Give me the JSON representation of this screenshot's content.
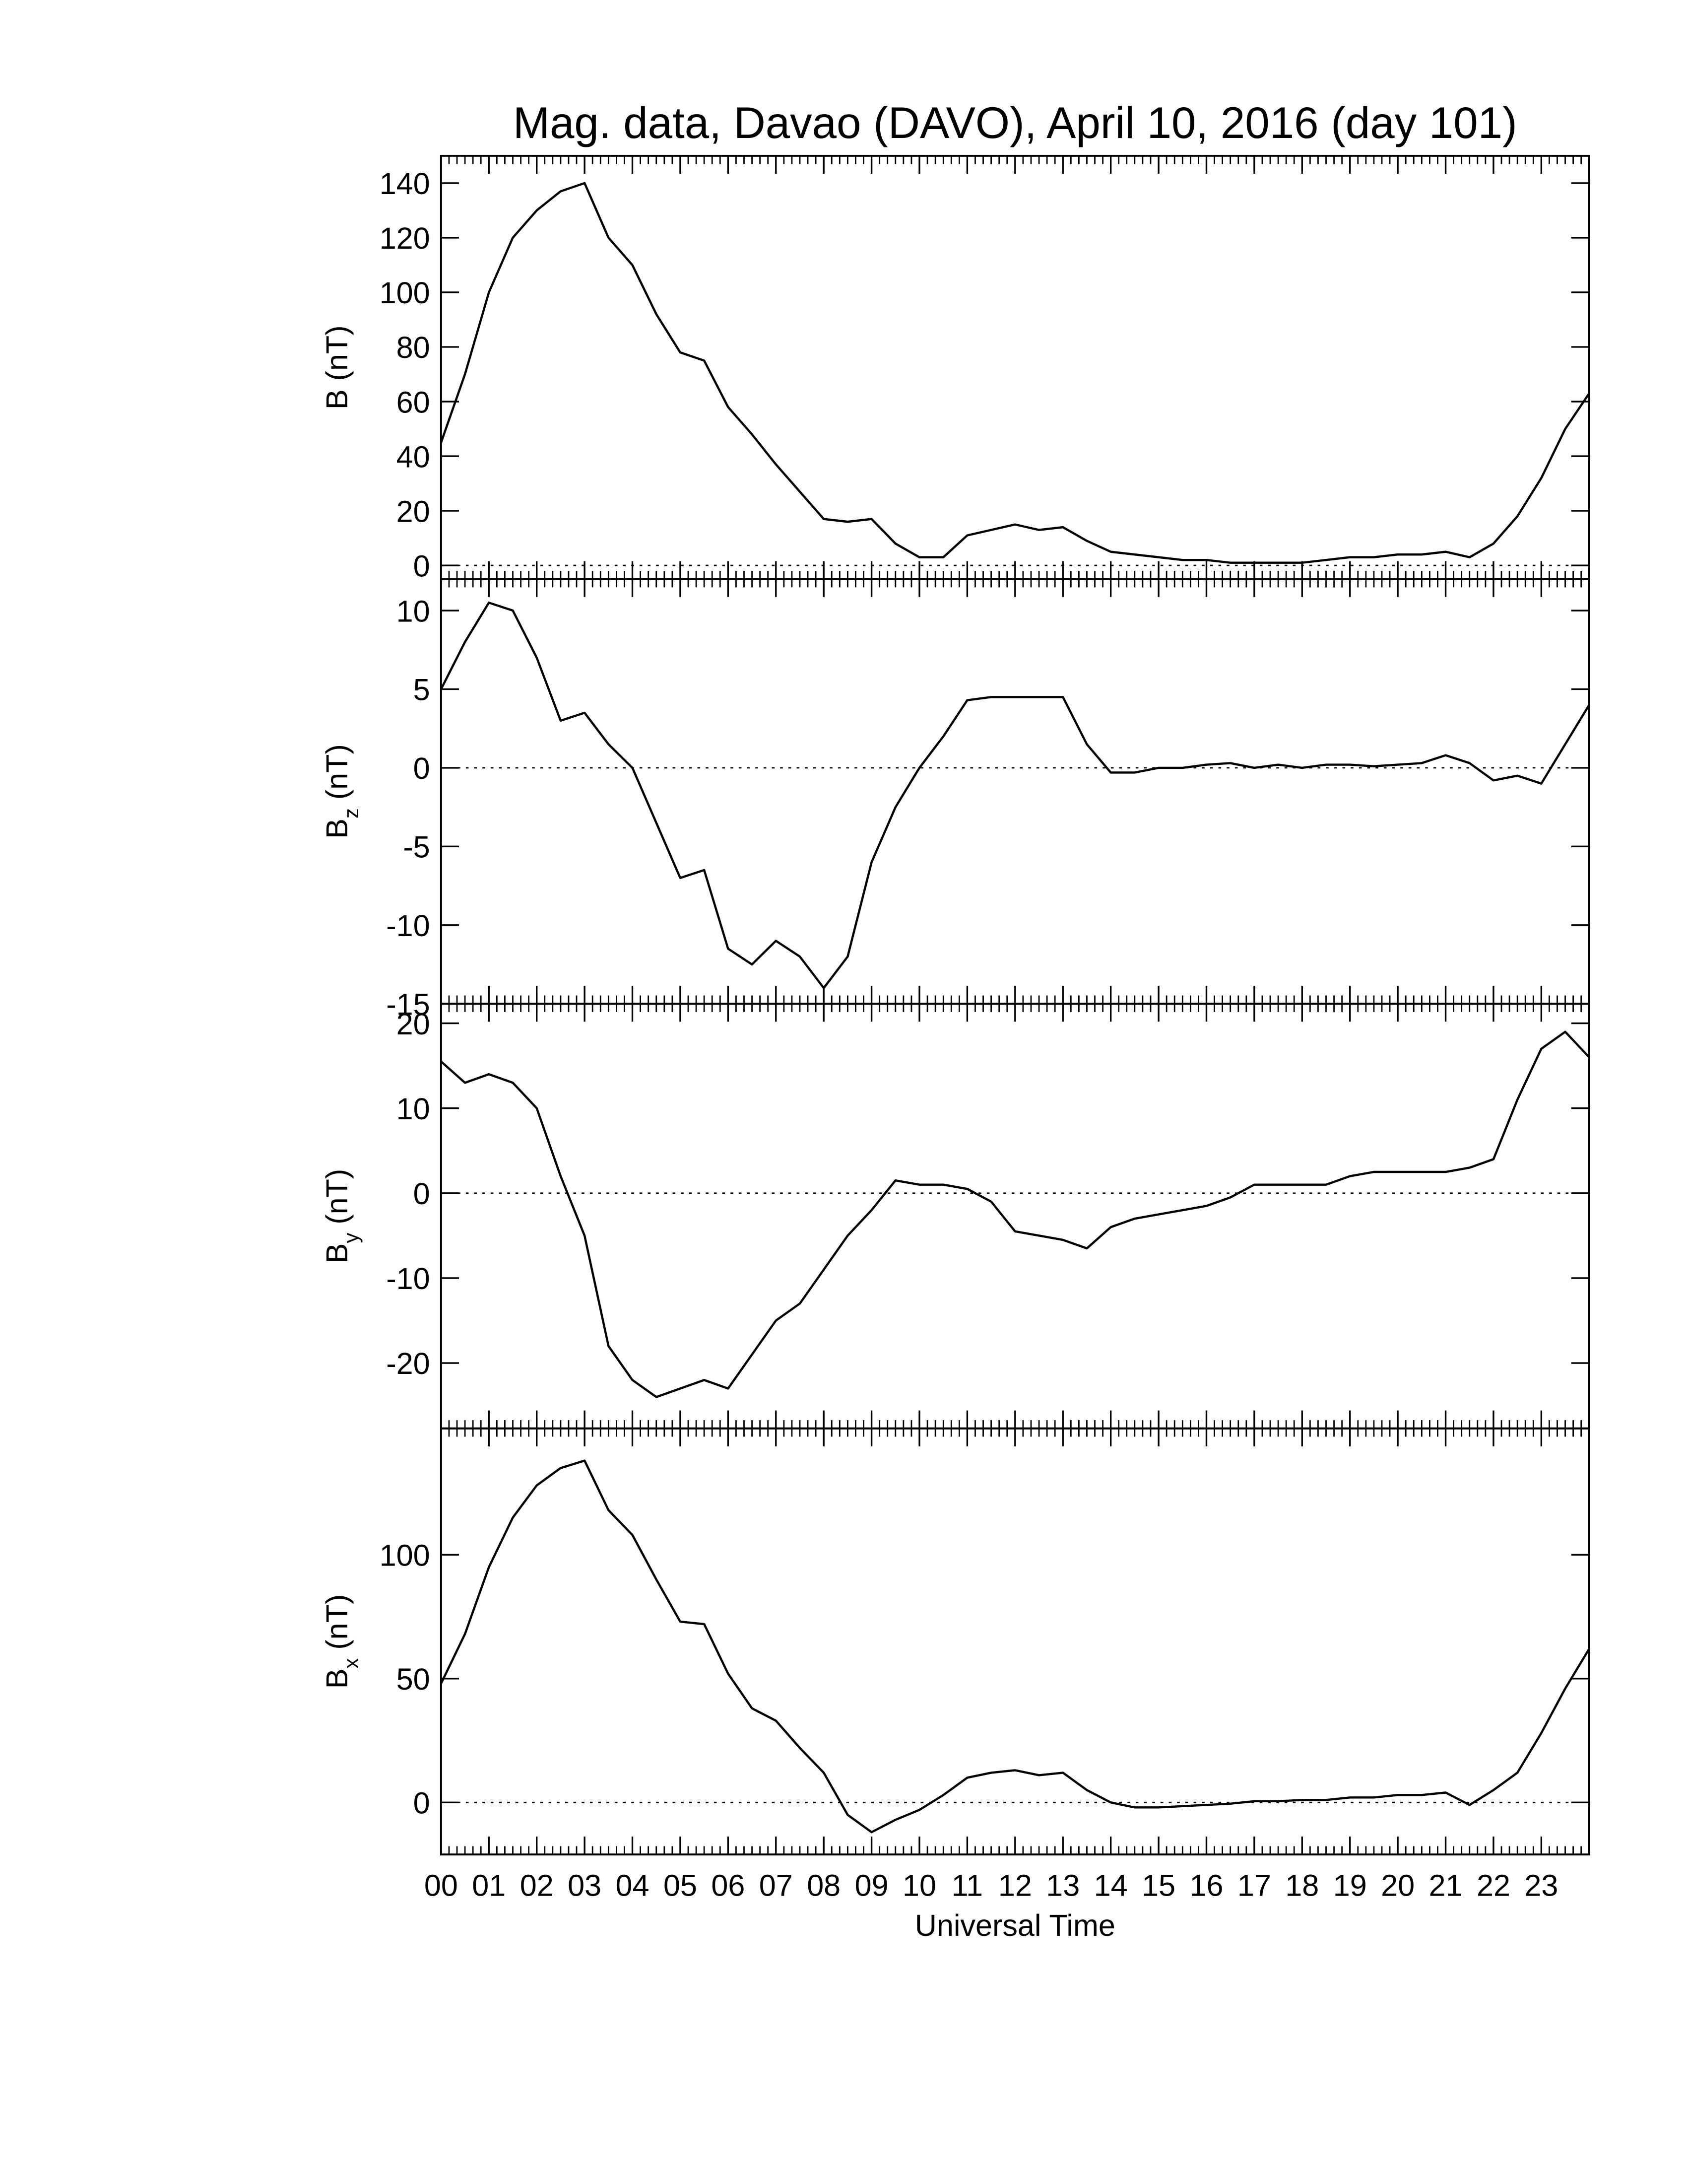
{
  "chart_data": [
    {
      "type": "line",
      "title": "Mag. data, Davao (DAVO), April 10, 2016 (day 101)",
      "ylabel": {
        "main": "B",
        "unit": " (nT)"
      },
      "color": "#000000",
      "hline": 0,
      "xlim": [
        0,
        24
      ],
      "xticks": [
        0,
        1,
        2,
        3,
        4,
        5,
        6,
        7,
        8,
        9,
        10,
        11,
        12,
        13,
        14,
        15,
        16,
        17,
        18,
        19,
        20,
        21,
        22,
        23
      ],
      "ylim": [
        -5,
        150
      ],
      "yticks": [
        0,
        20,
        40,
        60,
        80,
        100,
        120,
        140
      ],
      "x": [
        0,
        0.5,
        1,
        1.5,
        2,
        2.5,
        3,
        3.5,
        4,
        4.5,
        5,
        5.5,
        6,
        6.5,
        7,
        7.5,
        8,
        8.5,
        9,
        9.5,
        10,
        10.5,
        11,
        11.5,
        12,
        12.5,
        13,
        13.5,
        14,
        14.5,
        15,
        15.5,
        16,
        16.5,
        17,
        17.5,
        18,
        18.5,
        19,
        19.5,
        20,
        20.5,
        21,
        21.5,
        22,
        22.5,
        23,
        23.5,
        24
      ],
      "values": [
        45,
        70,
        100,
        120,
        130,
        137,
        140,
        120,
        110,
        92,
        78,
        75,
        58,
        48,
        37,
        27,
        17,
        16,
        17,
        8,
        3,
        3,
        11,
        13,
        15,
        13,
        14,
        9,
        5,
        4,
        3,
        2,
        2,
        1,
        1,
        1,
        1,
        2,
        3,
        3,
        4,
        4,
        5,
        3,
        8,
        18,
        32,
        50,
        63
      ]
    },
    {
      "type": "line",
      "ylabel": {
        "main": "B",
        "sub": "z",
        "unit": " (nT)"
      },
      "color": "#000000",
      "hline": 0,
      "xlim": [
        0,
        24
      ],
      "xticks": [
        0,
        1,
        2,
        3,
        4,
        5,
        6,
        7,
        8,
        9,
        10,
        11,
        12,
        13,
        14,
        15,
        16,
        17,
        18,
        19,
        20,
        21,
        22,
        23
      ],
      "ylim": [
        -15,
        12
      ],
      "yticks": [
        -15,
        -10,
        -5,
        0,
        5,
        10
      ],
      "x": [
        0,
        0.5,
        1,
        1.5,
        2,
        2.5,
        3,
        3.5,
        4,
        4.5,
        5,
        5.5,
        6,
        6.5,
        7,
        7.5,
        8,
        8.5,
        9,
        9.5,
        10,
        10.5,
        11,
        11.5,
        12,
        12.5,
        13,
        13.5,
        14,
        14.5,
        15,
        15.5,
        16,
        16.5,
        17,
        17.5,
        18,
        18.5,
        19,
        19.5,
        20,
        20.5,
        21,
        21.5,
        22,
        22.5,
        23,
        23.5,
        24
      ],
      "values": [
        5,
        8,
        10.5,
        10,
        7,
        3,
        3.5,
        1.5,
        0,
        -3.5,
        -7,
        -6.5,
        -11.5,
        -12.5,
        -11,
        -12,
        -14,
        -12,
        -6,
        -2.5,
        0,
        2,
        4.3,
        4.5,
        4.5,
        4.5,
        4.5,
        1.5,
        -0.3,
        -0.3,
        0,
        0,
        0.2,
        0.3,
        0,
        0.2,
        0,
        0.2,
        0.2,
        0.1,
        0.2,
        0.3,
        0.8,
        0.3,
        -0.8,
        -0.5,
        -1,
        1.5,
        4
      ]
    },
    {
      "type": "line",
      "ylabel": {
        "main": "B",
        "sub": "y",
        "unit": " (nT)"
      },
      "color": "#000000",
      "hline": 0,
      "xlim": [
        0,
        24
      ],
      "xticks": [
        0,
        1,
        2,
        3,
        4,
        5,
        6,
        7,
        8,
        9,
        10,
        11,
        12,
        13,
        14,
        15,
        16,
        17,
        18,
        19,
        20,
        21,
        22,
        23
      ],
      "ylim": [
        -27.7,
        22.3
      ],
      "yticks": [
        -20,
        -10,
        0,
        10,
        20
      ],
      "x": [
        0,
        0.5,
        1,
        1.5,
        2,
        2.5,
        3,
        3.5,
        4,
        4.5,
        5,
        5.5,
        6,
        6.5,
        7,
        7.5,
        8,
        8.5,
        9,
        9.5,
        10,
        10.5,
        11,
        11.5,
        12,
        12.5,
        13,
        13.5,
        14,
        14.5,
        15,
        15.5,
        16,
        16.5,
        17,
        17.5,
        18,
        18.5,
        19,
        19.5,
        20,
        20.5,
        21,
        21.5,
        22,
        22.5,
        23,
        23.5,
        24
      ],
      "values": [
        15.5,
        13,
        14,
        13,
        10,
        2,
        -5,
        -18,
        -22,
        -24,
        -23,
        -22,
        -23,
        -19,
        -15,
        -13,
        -9,
        -5,
        -2,
        1.5,
        1,
        1,
        0.5,
        -1,
        -4.5,
        -5,
        -5.5,
        -6.5,
        -4,
        -3,
        -2.5,
        -2,
        -1.5,
        -0.5,
        1,
        1,
        1,
        1,
        2,
        2.5,
        2.5,
        2.5,
        2.5,
        3,
        4,
        11,
        17,
        19,
        16
      ]
    },
    {
      "type": "line",
      "ylabel": {
        "main": "B",
        "sub": "x",
        "unit": " (nT)"
      },
      "xlabel": "Universal Time",
      "color": "#000000",
      "hline": 0,
      "xlim": [
        0,
        24
      ],
      "xticks": [
        {
          "value": 0,
          "label": "00"
        },
        {
          "value": 1,
          "label": "01"
        },
        {
          "value": 2,
          "label": "02"
        },
        {
          "value": 3,
          "label": "03"
        },
        {
          "value": 4,
          "label": "04"
        },
        {
          "value": 5,
          "label": "05"
        },
        {
          "value": 6,
          "label": "06"
        },
        {
          "value": 7,
          "label": "07"
        },
        {
          "value": 8,
          "label": "08"
        },
        {
          "value": 9,
          "label": "09"
        },
        10,
        11,
        12,
        13,
        14,
        15,
        16,
        17,
        18,
        19,
        20,
        21,
        22,
        23
      ],
      "ylim": [
        -21,
        151
      ],
      "yticks": [
        0,
        50,
        100
      ],
      "x": [
        0,
        0.5,
        1,
        1.5,
        2,
        2.5,
        3,
        3.5,
        4,
        4.5,
        5,
        5.5,
        6,
        6.5,
        7,
        7.5,
        8,
        8.5,
        9,
        9.5,
        10,
        10.5,
        11,
        11.5,
        12,
        12.5,
        13,
        13.5,
        14,
        14.5,
        15,
        15.5,
        16,
        16.5,
        17,
        17.5,
        18,
        18.5,
        19,
        19.5,
        20,
        20.5,
        21,
        21.5,
        22,
        22.5,
        23,
        23.5,
        24
      ],
      "values": [
        48,
        68,
        95,
        115,
        128,
        135,
        138,
        118,
        108,
        90,
        73,
        72,
        52,
        38,
        33,
        22,
        12,
        -5,
        -12,
        -7,
        -3,
        3,
        10,
        12,
        13,
        11,
        12,
        5,
        0,
        -2,
        -2,
        -1.5,
        -1,
        -0.5,
        0.5,
        0.5,
        1,
        1,
        2,
        2,
        3,
        3,
        4,
        -1,
        5,
        12,
        28,
        46,
        62
      ]
    }
  ]
}
